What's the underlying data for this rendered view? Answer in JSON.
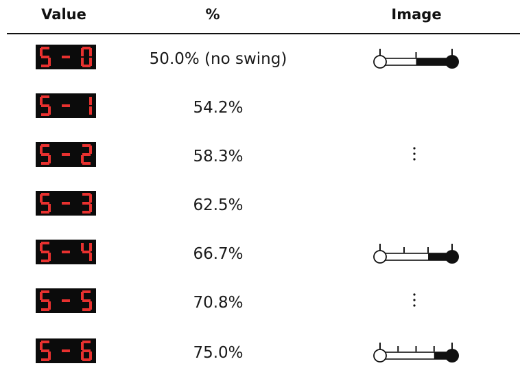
{
  "headers": {
    "value": "Value",
    "percent": "%",
    "image": "Image"
  },
  "colors": {
    "led_on": "#e8312f",
    "led_background": "#0b0b0b",
    "text": "#111111"
  },
  "rows": [
    {
      "led": "5-0",
      "percent": "50.0% (no swing)",
      "image": "knob",
      "knob_ticks": 3,
      "knob_position": 0.5
    },
    {
      "led": "5-1",
      "percent": "54.2%",
      "image": "none"
    },
    {
      "led": "5-2",
      "percent": "58.3%",
      "image": "ellipsis"
    },
    {
      "led": "5-3",
      "percent": "62.5%",
      "image": "none"
    },
    {
      "led": "5-4",
      "percent": "66.7%",
      "image": "knob",
      "knob_ticks": 4,
      "knob_position": 0.667
    },
    {
      "led": "5-5",
      "percent": "70.8%",
      "image": "ellipsis"
    },
    {
      "led": "5-6",
      "percent": "75.0%",
      "image": "knob",
      "knob_ticks": 5,
      "knob_position": 0.75
    }
  ]
}
